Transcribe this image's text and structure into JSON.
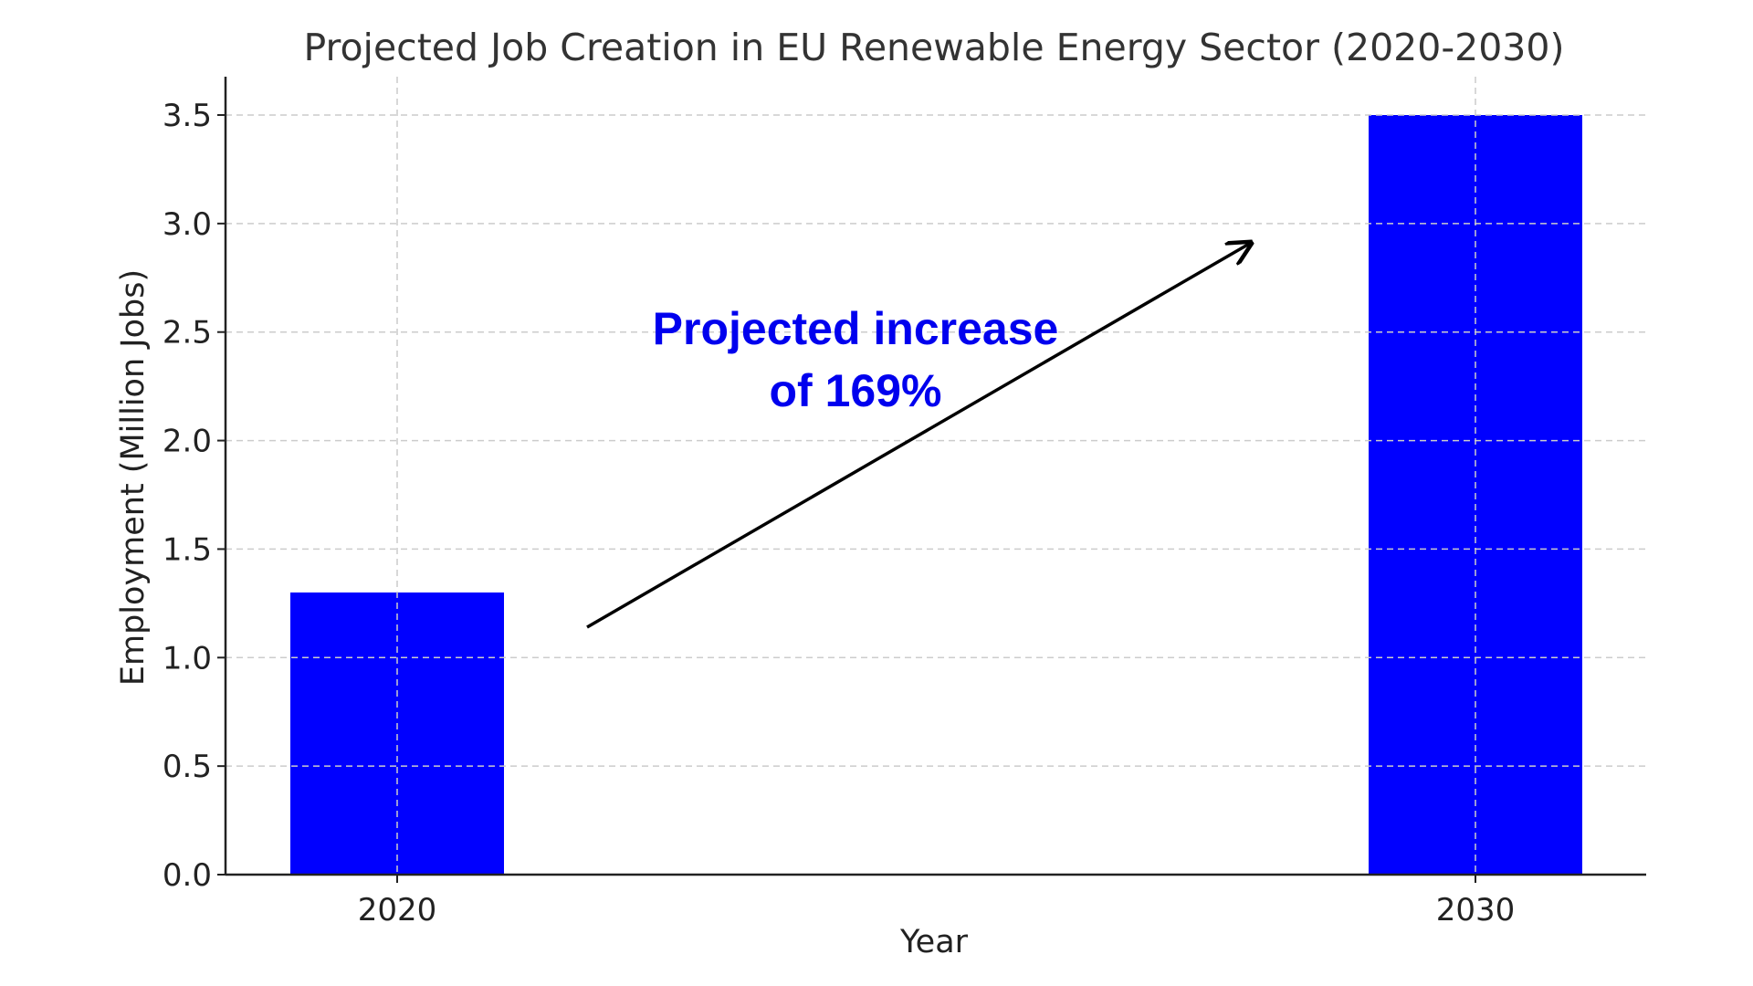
{
  "chart_data": {
    "type": "bar",
    "title": "Projected Job Creation in EU Renewable Energy Sector (2020-2030)",
    "xlabel": "Year",
    "ylabel": "Employment (Million Jobs)",
    "categories": [
      "2020",
      "2030"
    ],
    "values": [
      1.3,
      3.5
    ],
    "ylim": [
      0,
      3.5
    ],
    "yticks": [
      "0.0",
      "0.5",
      "1.0",
      "1.5",
      "2.0",
      "2.5",
      "3.0",
      "3.5"
    ],
    "grid": true,
    "bar_color": "#0000ff",
    "annotation": {
      "line1": "Projected increase",
      "line2": "of 169%",
      "color": "#0000ee"
    }
  }
}
